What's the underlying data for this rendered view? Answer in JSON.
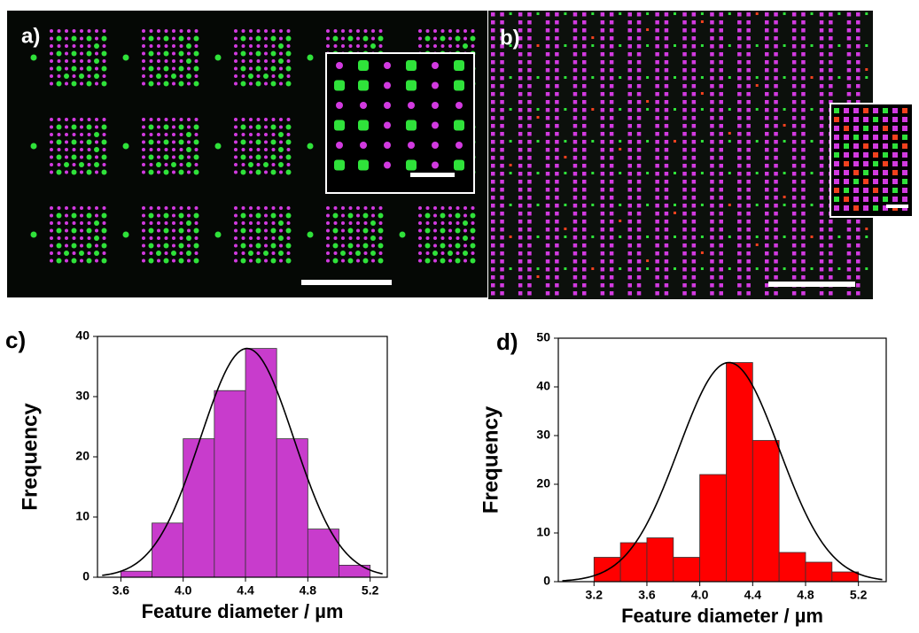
{
  "panel_labels": {
    "a": "a)",
    "b": "b)",
    "c": "c)",
    "d": "d)"
  },
  "chart_data": [
    {
      "type": "histogram",
      "xlabel": "Feature diameter / µm",
      "ylabel": "Frequency",
      "bins": [
        3.6,
        3.8,
        4.0,
        4.2,
        4.4,
        4.6,
        4.8,
        5.0,
        5.2
      ],
      "values": [
        1,
        9,
        23,
        31,
        38,
        23,
        8,
        2
      ],
      "color": "#c83ccc",
      "fit": {
        "peak": 38,
        "mean": 4.41,
        "sd": 0.3
      },
      "xlim": [
        3.45,
        5.31
      ],
      "ylim": [
        0,
        40
      ],
      "xticks": [
        3.6,
        {
          "value": 4.0,
          "label": "4.0"
        },
        4.4,
        4.8,
        5.2
      ],
      "yticks": [
        0,
        10,
        20,
        30,
        40
      ]
    },
    {
      "type": "histogram",
      "xlabel": "Feature diameter / µm",
      "ylabel": "Frequency",
      "bins": [
        3.2,
        3.4,
        3.6,
        3.8,
        4.0,
        4.2,
        4.4,
        4.6,
        4.8,
        5.0,
        5.2
      ],
      "values": [
        5,
        8,
        9,
        5,
        22,
        45,
        29,
        6,
        4,
        2
      ],
      "color": "#ff0000",
      "fit": {
        "peak": 45,
        "mean": 4.22,
        "sd": 0.38
      },
      "xlim": [
        2.93,
        5.41
      ],
      "ylim": [
        0,
        50
      ],
      "xticks": [
        3.2,
        3.6,
        {
          "value": 4.0,
          "label": "4.0"
        },
        4.4,
        4.8,
        5.2
      ],
      "yticks": [
        0,
        10,
        20,
        30,
        40,
        50
      ]
    }
  ]
}
